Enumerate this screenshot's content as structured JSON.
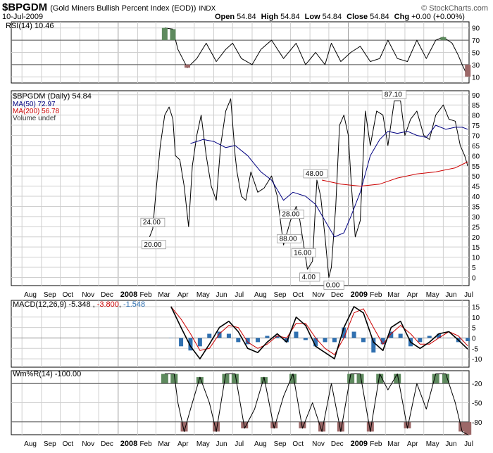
{
  "header": {
    "symbol": "$BPGDM",
    "name": "(Gold Miners Bullish Percent Index (EOD))",
    "exchange": "INDX",
    "date": "10-Jul-2009",
    "open_label": "Open",
    "open": "54.84",
    "high_label": "High",
    "high": "54.84",
    "low_label": "Low",
    "low": "54.84",
    "close_label": "Close",
    "close": "54.84",
    "chg_label": "Chg",
    "chg": "+0.00 (+0.00%)",
    "watermark": "© StockCharts.com"
  },
  "colors": {
    "price": "#000000",
    "ma50": "#000080",
    "ma200": "#cc0000",
    "macd_signal": "#cc0000",
    "histogram": "#3070b0",
    "overbought": "#5e8a5e",
    "oversold": "#9c6868",
    "grid": "#cfcfcf"
  },
  "chart_data": [
    {
      "type": "line",
      "panel": "rsi",
      "label": "RSI(14) 10.46",
      "ylim": [
        0,
        100
      ],
      "yticks": [
        10,
        30,
        50,
        70,
        90
      ],
      "levels": [
        30,
        70
      ],
      "x": [
        "2007-07-01",
        "2008-03-15",
        "2008-03-28",
        "2008-04-05",
        "2008-04-20",
        "2008-05-05",
        "2008-05-20",
        "2008-06-05",
        "2008-06-20",
        "2008-07-01",
        "2008-07-15",
        "2008-08-01",
        "2008-08-15",
        "2008-09-01",
        "2008-09-20",
        "2008-10-10",
        "2008-10-25",
        "2008-11-10",
        "2008-11-25",
        "2008-12-05",
        "2008-12-20",
        "2009-01-05",
        "2009-01-20",
        "2009-02-05",
        "2009-02-20",
        "2009-03-05",
        "2009-03-20",
        "2009-04-05",
        "2009-04-20",
        "2009-05-05",
        "2009-05-20",
        "2009-06-01",
        "2009-06-15",
        "2009-06-25",
        "2009-07-01",
        "2009-07-10"
      ],
      "values": [
        null,
        90,
        88,
        55,
        25,
        40,
        65,
        35,
        55,
        65,
        40,
        30,
        55,
        70,
        40,
        65,
        30,
        50,
        30,
        65,
        35,
        50,
        60,
        35,
        40,
        70,
        40,
        35,
        70,
        40,
        70,
        75,
        65,
        45,
        30,
        10.46
      ]
    },
    {
      "type": "line",
      "panel": "price",
      "legend": [
        "$BPGDM (Daily) 54.84",
        "MA(50) 72.97",
        "MA(200) 56.78",
        "Volume undef"
      ],
      "ylim": [
        -4,
        92
      ],
      "yticks": [
        0,
        5,
        10,
        15,
        20,
        25,
        30,
        35,
        40,
        45,
        50,
        55,
        60,
        65,
        70,
        75,
        80,
        85,
        90
      ],
      "x_labels": [
        "Aug",
        "Sep",
        "Oct",
        "Nov",
        "Dec",
        "2008",
        "Feb",
        "Mar",
        "Apr",
        "May",
        "Jun",
        "Jul",
        "Aug",
        "Sep",
        "Oct",
        "Nov",
        "Dec",
        "2009",
        "Feb",
        "Mar",
        "Apr",
        "May",
        "Jun",
        "Jul"
      ],
      "series": [
        {
          "name": "$BPGDM (Daily)",
          "x": [
            "2008-02-20",
            "2008-02-25",
            "2008-03-01",
            "2008-03-08",
            "2008-03-15",
            "2008-03-22",
            "2008-03-28",
            "2008-04-01",
            "2008-04-08",
            "2008-04-15",
            "2008-04-22",
            "2008-04-28",
            "2008-05-05",
            "2008-05-12",
            "2008-05-20",
            "2008-05-28",
            "2008-06-05",
            "2008-06-12",
            "2008-06-20",
            "2008-06-28",
            "2008-07-05",
            "2008-07-08",
            "2008-07-15",
            "2008-07-22",
            "2008-07-30",
            "2008-08-10",
            "2008-08-20",
            "2008-09-01",
            "2008-09-10",
            "2008-09-20",
            "2008-10-01",
            "2008-10-10",
            "2008-10-15",
            "2008-10-22",
            "2008-10-28",
            "2008-11-05",
            "2008-11-12",
            "2008-11-18",
            "2008-11-25",
            "2008-12-01",
            "2008-12-05",
            "2008-12-12",
            "2008-12-18",
            "2008-12-25",
            "2009-01-01",
            "2009-01-06",
            "2009-01-12",
            "2009-01-20",
            "2009-01-28",
            "2009-02-05",
            "2009-02-15",
            "2009-02-25",
            "2009-03-05",
            "2009-03-15",
            "2009-03-25",
            "2009-04-01",
            "2009-04-10",
            "2009-04-20",
            "2009-05-01",
            "2009-05-10",
            "2009-05-20",
            "2009-06-01",
            "2009-06-10",
            "2009-06-20",
            "2009-06-28",
            "2009-07-05",
            "2009-07-10"
          ],
          "values": [
            20,
            24,
            42,
            65,
            80,
            84,
            78,
            60,
            58,
            45,
            25,
            55,
            70,
            80,
            60,
            45,
            38,
            65,
            82,
            88,
            60,
            52,
            40,
            38,
            52,
            42,
            44,
            50,
            40,
            16,
            28,
            35,
            30,
            16,
            4,
            8,
            48,
            40,
            20,
            0,
            5,
            35,
            75,
            80,
            70,
            45,
            20,
            28,
            82,
            65,
            82,
            80,
            65,
            87,
            87,
            70,
            78,
            82,
            70,
            68,
            80,
            85,
            78,
            77,
            65,
            60,
            54.84
          ]
        },
        {
          "name": "MA(50)",
          "x": [
            "2008-04-25",
            "2008-05-15",
            "2008-06-01",
            "2008-06-20",
            "2008-07-05",
            "2008-07-25",
            "2008-08-15",
            "2008-09-01",
            "2008-09-20",
            "2008-10-05",
            "2008-10-25",
            "2008-11-10",
            "2008-11-25",
            "2008-12-10",
            "2008-12-25",
            "2009-01-05",
            "2009-01-20",
            "2009-02-05",
            "2009-02-20",
            "2009-03-05",
            "2009-03-20",
            "2009-04-05",
            "2009-04-20",
            "2009-05-05",
            "2009-05-20",
            "2009-06-05",
            "2009-06-20",
            "2009-07-01",
            "2009-07-10"
          ],
          "values": [
            66,
            68,
            67,
            64,
            65,
            60,
            52,
            48,
            38,
            42,
            40,
            36,
            28,
            20,
            22,
            30,
            42,
            60,
            68,
            72,
            71,
            72,
            70,
            69,
            75,
            73,
            74,
            74,
            73
          ]
        },
        {
          "name": "MA(200)",
          "x": [
            "2008-11-20",
            "2008-12-20",
            "2009-01-20",
            "2009-02-20",
            "2009-03-20",
            "2009-04-20",
            "2009-05-20",
            "2009-06-20",
            "2009-07-10"
          ],
          "values": [
            48,
            46,
            45,
            46,
            49,
            51,
            52,
            54,
            57
          ]
        }
      ],
      "annotations": [
        {
          "text": "24.00",
          "value": 24
        },
        {
          "text": "20.00",
          "value": 20
        },
        {
          "text": "88.00",
          "value": 88
        },
        {
          "text": "48.00",
          "value": 48
        },
        {
          "text": "28.00",
          "value": 28
        },
        {
          "text": "16.00",
          "value": 16
        },
        {
          "text": "4.00",
          "value": 4
        },
        {
          "text": "0.00",
          "value": 0
        },
        {
          "text": "87.10",
          "value": 87.1
        }
      ]
    },
    {
      "type": "line",
      "panel": "macd",
      "label_parts": [
        "MACD(12,26,9)",
        "-5.348",
        "-3.800",
        "-1.548"
      ],
      "ylim": [
        -14,
        18
      ],
      "yticks": [
        -10,
        -5,
        0,
        5,
        10,
        15
      ],
      "x": [
        "2008-03-25",
        "2008-04-10",
        "2008-04-25",
        "2008-05-10",
        "2008-05-25",
        "2008-06-10",
        "2008-06-25",
        "2008-07-10",
        "2008-07-25",
        "2008-08-10",
        "2008-08-25",
        "2008-09-10",
        "2008-09-25",
        "2008-10-10",
        "2008-10-25",
        "2008-11-10",
        "2008-11-25",
        "2008-12-10",
        "2008-12-25",
        "2009-01-10",
        "2009-01-25",
        "2009-02-10",
        "2009-02-25",
        "2009-03-10",
        "2009-03-25",
        "2009-04-10",
        "2009-04-25",
        "2009-05-10",
        "2009-05-25",
        "2009-06-10",
        "2009-06-25",
        "2009-07-10"
      ],
      "macd": [
        15,
        5,
        -4,
        -10,
        -3,
        5,
        8,
        3,
        -5,
        -7,
        -2,
        2,
        -2,
        10,
        6,
        -4,
        -7,
        -10,
        5,
        15,
        12,
        -2,
        -6,
        5,
        8,
        -2,
        -5,
        -2,
        2,
        3,
        -1,
        -5.348
      ],
      "signal": [
        15,
        9,
        2,
        -6,
        -5,
        2,
        6,
        5,
        -2,
        -5,
        -3,
        1,
        0,
        7,
        7,
        0,
        -5,
        -8,
        0,
        12,
        14,
        5,
        -3,
        2,
        6,
        2,
        -3,
        -3,
        0,
        3,
        1,
        -3.8
      ],
      "histogram": [
        0,
        -4,
        -6,
        -4,
        2,
        3,
        2,
        -2,
        -3,
        -2,
        1,
        1,
        -2,
        3,
        -1,
        -4,
        -2,
        -2,
        5,
        3,
        -2,
        -7,
        -3,
        3,
        2,
        -4,
        -2,
        1,
        2,
        0,
        -2,
        -1.548
      ]
    },
    {
      "type": "line",
      "panel": "williams",
      "label": "Wm%R(14) -100.00",
      "ylim": [
        -100,
        0
      ],
      "yticks": [
        -80,
        -50,
        -20
      ],
      "levels": [
        -20,
        -80
      ],
      "x": [
        "2008-03-15",
        "2008-03-30",
        "2008-04-05",
        "2008-04-15",
        "2008-04-25",
        "2008-05-10",
        "2008-05-25",
        "2008-06-05",
        "2008-06-20",
        "2008-07-05",
        "2008-07-20",
        "2008-08-05",
        "2008-08-20",
        "2008-09-05",
        "2008-09-20",
        "2008-10-05",
        "2008-10-20",
        "2008-11-05",
        "2008-11-20",
        "2008-12-05",
        "2008-12-20",
        "2009-01-05",
        "2009-01-20",
        "2009-02-05",
        "2009-02-20",
        "2009-03-05",
        "2009-03-20",
        "2009-04-05",
        "2009-04-20",
        "2009-05-05",
        "2009-05-20",
        "2009-06-05",
        "2009-06-20",
        "2009-07-01",
        "2009-07-10"
      ],
      "values": [
        -5,
        -5,
        -50,
        -95,
        -60,
        -10,
        -50,
        -95,
        -5,
        -5,
        -90,
        -60,
        -10,
        -90,
        -40,
        -5,
        -90,
        -50,
        -95,
        -20,
        -95,
        -5,
        -5,
        -95,
        -5,
        -30,
        -5,
        -90,
        -20,
        -60,
        -5,
        -5,
        -50,
        -95,
        -100
      ]
    }
  ]
}
